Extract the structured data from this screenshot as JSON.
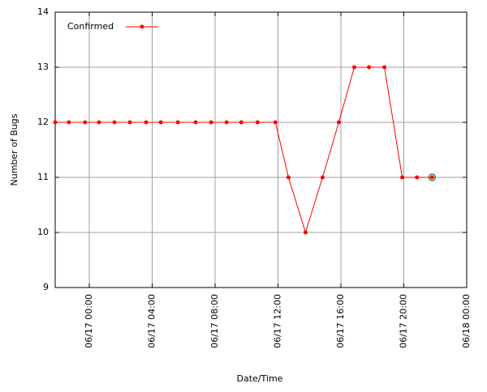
{
  "chart_data": {
    "type": "line",
    "x": [
      "06/16 21:50",
      "06/16 22:42",
      "06/16 23:44",
      "06/17 00:37",
      "06/17 01:36",
      "06/17 02:35",
      "06/17 03:37",
      "06/17 04:33",
      "06/17 05:38",
      "06/17 06:46",
      "06/17 07:45",
      "06/17 08:44",
      "06/17 09:40",
      "06/17 10:42",
      "06/17 11:50",
      "06/17 12:40",
      "06/17 13:45",
      "06/17 14:50",
      "06/17 15:52",
      "06/17 16:51",
      "06/17 17:47",
      "06/17 18:46",
      "06/17 19:54",
      "06/17 20:50",
      "06/17 21:48"
    ],
    "series": [
      {
        "name": "Confirmed",
        "color": "#ff0000",
        "values": [
          12,
          12,
          12,
          12,
          12,
          12,
          12,
          12,
          12,
          12,
          12,
          12,
          12,
          12,
          12,
          11,
          10,
          11,
          12,
          13,
          13,
          13,
          11,
          11,
          11
        ]
      }
    ],
    "xlim": [
      "06/16 21:50",
      "06/18 00:00"
    ],
    "xticks": [
      "06/17 00:00",
      "06/17 04:00",
      "06/17 08:00",
      "06/17 12:00",
      "06/17 16:00",
      "06/17 20:00",
      "06/18 00:00"
    ],
    "ylim": [
      9,
      14
    ],
    "yticks": [
      9,
      10,
      11,
      12,
      13,
      14
    ],
    "xlabel": "Date/Time",
    "ylabel": "Number of Bugs",
    "grid": true,
    "legend": "top-left"
  }
}
